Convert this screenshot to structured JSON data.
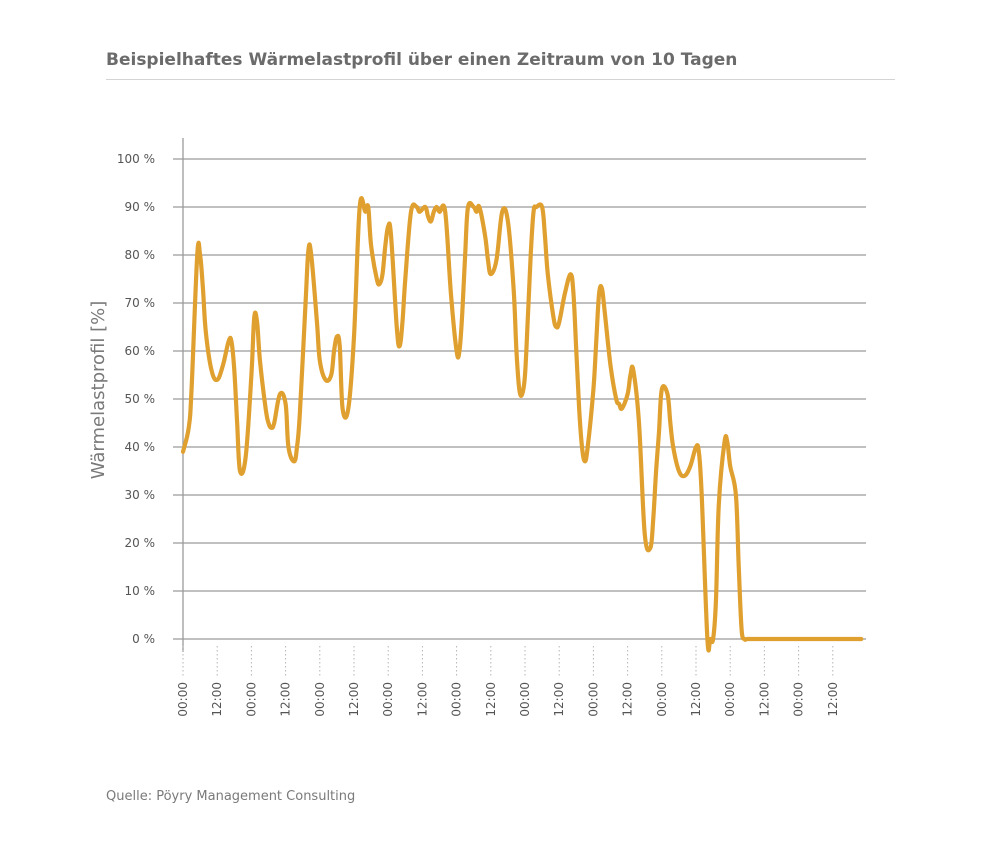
{
  "title": "Beispielhaftes Wärmelastprofil über einen Zeitraum von 10 Tagen",
  "source": "Quelle: Pöyry Management Consulting",
  "chart_data": {
    "type": "line",
    "ylabel": "Wärmelastprofil [%]",
    "xlabel": "",
    "ylim": [
      0,
      100
    ],
    "xlim": [
      0,
      238
    ],
    "grid": "horizontal",
    "line_color": "#e0a030",
    "y_ticks": [
      "100 %",
      "90 %",
      "80 %",
      "70 %",
      "60 %",
      "50 %",
      "40 %",
      "30 %",
      "20 %",
      "10 %",
      "0 %"
    ],
    "x_ticks": [
      {
        "label": "00:00",
        "h": 0
      },
      {
        "label": "12:00",
        "h": 12
      },
      {
        "label": "00:00",
        "h": 24
      },
      {
        "label": "12:00",
        "h": 36
      },
      {
        "label": "00:00",
        "h": 48
      },
      {
        "label": "12:00",
        "h": 60
      },
      {
        "label": "00:00",
        "h": 72
      },
      {
        "label": "12:00",
        "h": 84
      },
      {
        "label": "00:00",
        "h": 96
      },
      {
        "label": "12:00",
        "h": 108
      },
      {
        "label": "00:00",
        "h": 120
      },
      {
        "label": "12:00",
        "h": 132
      },
      {
        "label": "00:00",
        "h": 144
      },
      {
        "label": "12:00",
        "h": 156
      },
      {
        "label": "00:00",
        "h": 168
      },
      {
        "label": "12:00",
        "h": 180
      },
      {
        "label": "00:00",
        "h": 192
      },
      {
        "label": "12:00",
        "h": 204
      },
      {
        "label": "00:00",
        "h": 216
      },
      {
        "label": "12:00",
        "h": 228
      }
    ],
    "series": [
      {
        "x": [
          0,
          2,
          3,
          5,
          6,
          7,
          8,
          10,
          12,
          14,
          16,
          17,
          18,
          19,
          20,
          22,
          24,
          25,
          26,
          27,
          29,
          30,
          31,
          32,
          34,
          36,
          37,
          39,
          40,
          41,
          43,
          44,
          45,
          47,
          48,
          50,
          52,
          53,
          54,
          55,
          56,
          58,
          60,
          62,
          64,
          65,
          66,
          68,
          69,
          70,
          71,
          72,
          73,
          75,
          76,
          77,
          78,
          80,
          82,
          83,
          85,
          86,
          87,
          88,
          89,
          90,
          92,
          94,
          96,
          97,
          98,
          99,
          100,
          102,
          103,
          104,
          106,
          107,
          108,
          110,
          112,
          114,
          116,
          117,
          118,
          119,
          120,
          121,
          122,
          123,
          124,
          126,
          127,
          128,
          130,
          131,
          132,
          134,
          136,
          137,
          138,
          139,
          140,
          141,
          142,
          144,
          145,
          146,
          147,
          148,
          150,
          152,
          153,
          154,
          156,
          157,
          158,
          160,
          162,
          164,
          165,
          166,
          167,
          168,
          170,
          171,
          172,
          174,
          176,
          178,
          180,
          181,
          182,
          184,
          185,
          186,
          187,
          188,
          190,
          191,
          192,
          194,
          195,
          196,
          197,
          198,
          200,
          201,
          202,
          203,
          204,
          205,
          206,
          208,
          210,
          211,
          212,
          214,
          216,
          217,
          218,
          219,
          220,
          221,
          222,
          224,
          225,
          226,
          228,
          238
        ],
        "y": [
          39,
          44,
          52,
          80,
          80,
          73,
          64,
          56,
          54,
          57,
          62,
          62,
          56,
          45,
          35,
          38,
          55,
          67,
          66,
          58,
          48,
          45,
          44,
          45,
          51,
          49,
          40,
          37,
          40,
          47,
          70,
          81,
          80,
          66,
          58,
          54,
          55,
          60,
          63,
          61,
          48,
          48,
          63,
          90,
          89,
          90,
          82,
          75,
          74,
          76,
          82,
          86,
          84,
          65,
          61,
          66,
          75,
          89,
          90,
          89,
          90,
          88,
          87,
          89,
          90,
          89,
          89,
          72,
          60,
          60,
          68,
          80,
          90,
          90,
          89,
          90,
          84,
          79,
          76,
          79,
          89,
          87,
          73,
          60,
          52,
          51,
          55,
          67,
          80,
          89,
          90,
          90,
          84,
          76,
          67,
          65,
          66,
          72,
          76,
          72,
          60,
          48,
          40,
          37,
          40,
          52,
          62,
          72,
          73,
          68,
          57,
          50,
          49,
          48,
          51,
          55,
          56,
          45,
          22,
          19,
          25,
          35,
          43,
          52,
          51,
          45,
          40,
          35,
          34,
          36,
          40,
          39,
          30,
          0,
          0,
          0,
          8,
          28,
          41,
          41,
          36,
          30,
          15,
          2,
          0,
          0,
          0,
          0,
          0,
          0,
          0,
          0,
          0,
          0,
          0,
          0,
          0,
          0,
          0,
          0,
          0,
          0,
          0,
          0,
          0,
          0,
          0,
          0,
          0,
          0
        ]
      }
    ]
  }
}
